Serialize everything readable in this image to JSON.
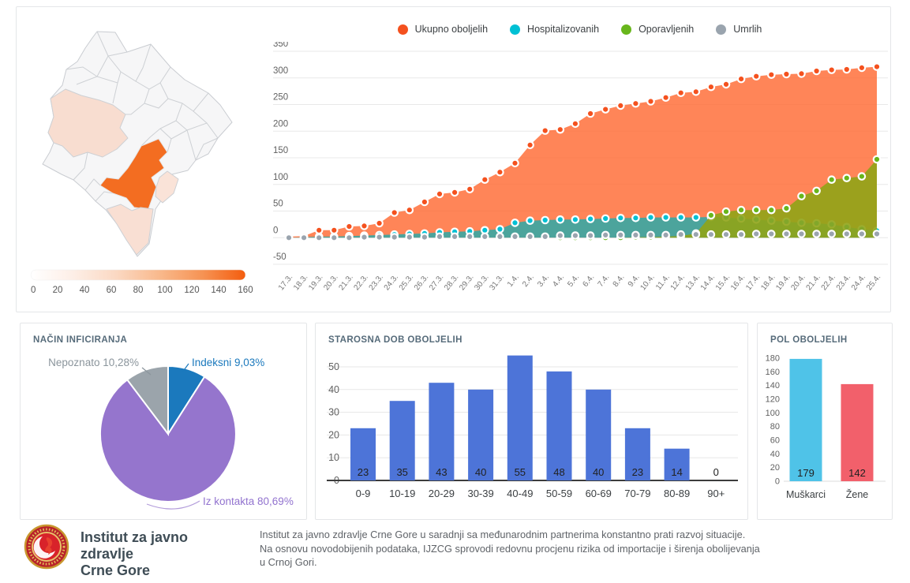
{
  "panels": {
    "infection_mode": {
      "title": "NAČIN INFICIRANJA"
    },
    "age": {
      "title": "STAROSNA DOB OBOLJELIH"
    },
    "sex": {
      "title": "POL OBOLJELIH"
    }
  },
  "footer": {
    "org_name_line1": "Institut za javno zdravlje",
    "org_name_line2": "Crne Gore",
    "description_lines": [
      "Institut za javno zdravlje Crne Gore u saradnji sa međunarodnim partnerima konstantno prati razvoj situacije.",
      "Na osnovu novodobijenih podataka, IJZCG sprovodi redovnu procjenu rizika od importacije i širenja obolijevanja",
      "u Crnoj Gori."
    ]
  },
  "map": {
    "colorbar": {
      "ticks": [
        "0",
        "20",
        "40",
        "60",
        "80",
        "100",
        "120",
        "140",
        "160"
      ],
      "gradient": [
        "#ffffff",
        "#fdeee6",
        "#fbd8c2",
        "#f9b98c",
        "#f69354",
        "#f45d0e"
      ]
    },
    "regions": [
      {
        "id": "other-municipalities",
        "value_approx": 2,
        "fill": "#f6f6f7"
      },
      {
        "id": "niksic",
        "value_approx": 25,
        "fill": "#f8ddd0"
      },
      {
        "id": "podgorica",
        "value_approx": 150,
        "fill": "#f36d21"
      },
      {
        "id": "tuzi",
        "value_approx": 15,
        "fill": "#fae3d8"
      },
      {
        "id": "bar-ulcinj",
        "value_approx": 20,
        "fill": "#f9dfd3"
      }
    ]
  },
  "chart_data": [
    {
      "id": "cases-timeseries",
      "type": "area",
      "title": "",
      "ylim": [
        -50,
        350
      ],
      "ytick_step": 50,
      "grid": true,
      "legend_position": "top",
      "x": [
        "17.3.",
        "18.3.",
        "19.3.",
        "20.3.",
        "21.3.",
        "22.3.",
        "23.3.",
        "24.3.",
        "25.3.",
        "26.3.",
        "27.3.",
        "28.3.",
        "29.3.",
        "30.3.",
        "31.3.",
        "1.4.",
        "2.4.",
        "3.4.",
        "4.4.",
        "5.4.",
        "6.4.",
        "7.4.",
        "8.4.",
        "9.4.",
        "10.4.",
        "11.4.",
        "12.4.",
        "13.4.",
        "14.4.",
        "15.4.",
        "16.4.",
        "17.4.",
        "18.4.",
        "19.4.",
        "20.4.",
        "21.4.",
        "22.4.",
        "23.4.",
        "24.4.",
        "25.4."
      ],
      "series": [
        {
          "name": "Ukupno oboljelih",
          "color": "#f4511e",
          "area": "rgba(255,106,51,0.82)",
          "values": [
            2,
            3,
            14,
            14,
            21,
            22,
            27,
            47,
            52,
            67,
            82,
            85,
            91,
            109,
            123,
            140,
            174,
            201,
            203,
            214,
            233,
            241,
            248,
            252,
            256,
            263,
            272,
            274,
            283,
            288,
            298,
            303,
            306,
            307,
            308,
            313,
            315,
            316,
            319,
            321
          ]
        },
        {
          "name": "Hospitalizovanih",
          "color": "#00c0d4",
          "area": "rgba(0,176,185,0.70)",
          "values": [
            0,
            1,
            2,
            2,
            3,
            4,
            5,
            6,
            7,
            8,
            10,
            11,
            12,
            14,
            16,
            28,
            32,
            33,
            34,
            34,
            35,
            36,
            37,
            37,
            38,
            38,
            38,
            38,
            39,
            38,
            36,
            34,
            32,
            30,
            28,
            27,
            25,
            20,
            16,
            13
          ]
        },
        {
          "name": "Oporavljenih",
          "color": "#68b61c",
          "area": "rgba(144,164,23,0.90)",
          "values": [
            0,
            0,
            0,
            0,
            0,
            0,
            0,
            0,
            0,
            0,
            0,
            0,
            0,
            0,
            0,
            0,
            0,
            0,
            0,
            0,
            0,
            0,
            0,
            1,
            1,
            2,
            3,
            8,
            42,
            49,
            52,
            52,
            52,
            55,
            78,
            88,
            109,
            112,
            115,
            147
          ]
        },
        {
          "name": "Umrlih",
          "color": "#9aa4ae",
          "area": null,
          "values": [
            0,
            0,
            0,
            0,
            0,
            1,
            1,
            1,
            1,
            1,
            2,
            2,
            2,
            2,
            2,
            2,
            2,
            2,
            4,
            4,
            4,
            5,
            5,
            5,
            5,
            5,
            6,
            6,
            6,
            6,
            6,
            7,
            7,
            7,
            7,
            7,
            7,
            7,
            7,
            7
          ]
        }
      ]
    },
    {
      "id": "infection-mode-pie",
      "type": "pie",
      "title": "NAČIN INFICIRANJA",
      "labels": [
        "Indeksni",
        "Iz kontakta",
        "Nepoznato"
      ],
      "values": [
        9.03,
        80.69,
        10.28
      ],
      "display_labels": [
        "Indeksni 9,03%",
        "Iz kontakta 80,69%",
        "Nepoznato 10,28%"
      ],
      "colors": [
        "#1b79bd",
        "#9575cd",
        "#9ba4ab"
      ],
      "label_colors": [
        "#1b79bd",
        "#9273cf",
        "#8b959c"
      ]
    },
    {
      "id": "age-bars",
      "type": "bar",
      "title": "STAROSNA DOB OBOLJELIH",
      "categories": [
        "0-9",
        "10-19",
        "20-29",
        "30-39",
        "40-49",
        "50-59",
        "60-69",
        "70-79",
        "80-89",
        "90+"
      ],
      "values": [
        23,
        35,
        43,
        40,
        55,
        48,
        40,
        23,
        14,
        0
      ],
      "bar_color": "#4d74d8",
      "yticks": [
        0,
        10,
        20,
        30,
        40,
        50
      ]
    },
    {
      "id": "sex-bars",
      "type": "bar",
      "title": "POL OBOLJELIH",
      "categories": [
        "Muškarci",
        "Žene"
      ],
      "values": [
        179,
        142
      ],
      "colors": [
        "#4fc3e8",
        "#f2606b"
      ],
      "yticks": [
        0,
        20,
        40,
        60,
        80,
        100,
        120,
        140,
        160,
        180
      ]
    },
    {
      "id": "montenegro-choropleth",
      "type": "heatmap",
      "title": "",
      "scale_ticks": [
        0,
        20,
        40,
        60,
        80,
        100,
        120,
        140,
        160
      ],
      "regions": [
        {
          "name": "podgorica",
          "value_approx": 150
        },
        {
          "name": "niksic",
          "value_approx": 25
        },
        {
          "name": "bar-ulcinj",
          "value_approx": 20
        },
        {
          "name": "tuzi",
          "value_approx": 15
        }
      ]
    }
  ]
}
